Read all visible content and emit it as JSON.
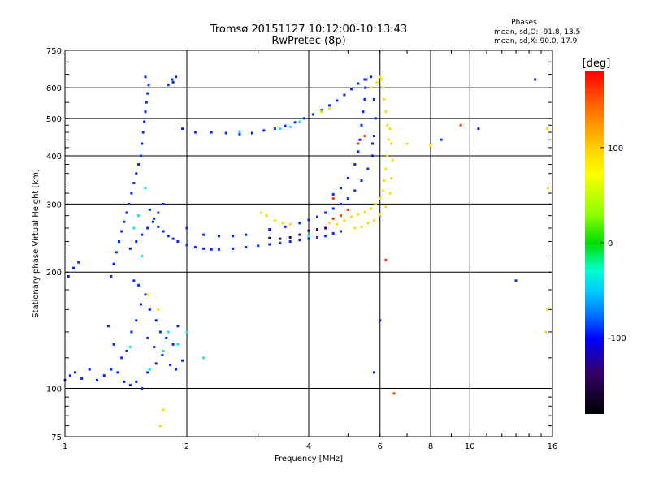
{
  "header": {
    "title": "Tromsø 20151127 10:12:00-10:13:43",
    "subtitle": "RwPretec (8p)"
  },
  "stats": {
    "heading": "Phases",
    "line_o": "mean, sd,O: -91.8, 13.5",
    "line_x": "mean, sd,X:  90.0, 17.9"
  },
  "chart_data": {
    "type": "scatter",
    "title": "Tromsø 20151127 10:12:00-10:13:43",
    "subtitle": "RwPretec (8p)",
    "xlabel": "Frequency [MHz]",
    "ylabel": "Stationary phase Virtual Height [km]",
    "x_scale": "log",
    "y_scale": "log",
    "xlim": [
      1,
      16
    ],
    "ylim": [
      75,
      750
    ],
    "x_ticks": [
      1,
      2,
      4,
      6,
      8,
      10,
      16
    ],
    "x_tick_labels": [
      "1",
      "2",
      "4",
      "6",
      "8",
      "10",
      "16"
    ],
    "y_ticks": [
      75,
      100,
      200,
      300,
      400,
      500,
      600,
      750
    ],
    "y_tick_labels": [
      "75",
      "100",
      "200",
      "300",
      "400",
      "500",
      "600",
      "750"
    ],
    "grid": true,
    "color_by": "phase",
    "colorbar": {
      "unit": "[deg]",
      "range": [
        -180,
        180
      ],
      "ticks": [
        100,
        0,
        -100
      ],
      "tick_labels": [
        "100",
        "0",
        "-100"
      ]
    },
    "series": [
      {
        "phase_deg": -92,
        "points": [
          [
            1.0,
            105
          ],
          [
            1.03,
            108
          ],
          [
            1.06,
            110
          ],
          [
            1.1,
            106
          ],
          [
            1.15,
            112
          ],
          [
            1.2,
            105
          ],
          [
            1.25,
            108
          ],
          [
            1.3,
            112
          ],
          [
            1.35,
            110
          ],
          [
            1.4,
            104
          ],
          [
            1.45,
            102
          ],
          [
            1.5,
            104
          ],
          [
            1.55,
            100
          ],
          [
            1.6,
            110
          ],
          [
            1.68,
            116
          ],
          [
            1.02,
            195
          ],
          [
            1.05,
            205
          ],
          [
            1.08,
            212
          ],
          [
            1.28,
            145
          ],
          [
            1.32,
            130
          ],
          [
            1.38,
            120
          ],
          [
            1.42,
            125
          ],
          [
            1.46,
            140
          ],
          [
            1.5,
            150
          ],
          [
            1.54,
            165
          ],
          [
            1.58,
            175
          ],
          [
            1.62,
            160
          ],
          [
            1.68,
            150
          ],
          [
            1.72,
            140
          ],
          [
            1.78,
            135
          ],
          [
            1.85,
            130
          ],
          [
            1.9,
            145
          ],
          [
            1.95,
            118
          ],
          [
            1.48,
            190
          ],
          [
            1.52,
            185
          ],
          [
            1.6,
            135
          ],
          [
            1.66,
            128
          ],
          [
            1.74,
            122
          ],
          [
            1.82,
            115
          ],
          [
            1.88,
            112
          ],
          [
            1.3,
            195
          ],
          [
            1.32,
            210
          ],
          [
            1.34,
            225
          ],
          [
            1.36,
            240
          ],
          [
            1.38,
            255
          ],
          [
            1.4,
            270
          ],
          [
            1.42,
            285
          ],
          [
            1.44,
            300
          ],
          [
            1.46,
            320
          ],
          [
            1.48,
            340
          ],
          [
            1.5,
            360
          ],
          [
            1.52,
            380
          ],
          [
            1.54,
            400
          ],
          [
            1.55,
            430
          ],
          [
            1.56,
            460
          ],
          [
            1.57,
            490
          ],
          [
            1.58,
            520
          ],
          [
            1.59,
            550
          ],
          [
            1.6,
            580
          ],
          [
            1.61,
            610
          ],
          [
            1.58,
            640
          ],
          [
            1.45,
            230
          ],
          [
            1.5,
            240
          ],
          [
            1.55,
            250
          ],
          [
            1.6,
            260
          ],
          [
            1.65,
            270
          ],
          [
            1.7,
            285
          ],
          [
            1.75,
            300
          ],
          [
            1.8,
            610
          ],
          [
            1.85,
            620
          ],
          [
            1.88,
            640
          ],
          [
            1.84,
            630
          ],
          [
            1.62,
            290
          ],
          [
            1.66,
            275
          ],
          [
            1.7,
            262
          ],
          [
            1.75,
            255
          ],
          [
            1.8,
            248
          ],
          [
            1.85,
            244
          ],
          [
            1.9,
            240
          ],
          [
            2.0,
            235
          ],
          [
            2.1,
            232
          ],
          [
            2.2,
            230
          ],
          [
            2.3,
            229
          ],
          [
            2.4,
            229
          ],
          [
            2.6,
            230
          ],
          [
            2.8,
            232
          ],
          [
            3.0,
            234
          ],
          [
            3.2,
            236
          ],
          [
            3.4,
            238
          ],
          [
            3.6,
            240
          ],
          [
            3.8,
            242
          ],
          [
            4.0,
            244
          ],
          [
            4.2,
            246
          ],
          [
            4.4,
            248
          ],
          [
            4.6,
            252
          ],
          [
            4.8,
            255
          ],
          [
            2.0,
            260
          ],
          [
            2.2,
            250
          ],
          [
            2.4,
            248
          ],
          [
            2.6,
            248
          ],
          [
            2.8,
            250
          ],
          [
            3.2,
            258
          ],
          [
            3.5,
            262
          ],
          [
            3.8,
            268
          ],
          [
            4.0,
            273
          ],
          [
            4.2,
            278
          ],
          [
            4.4,
            285
          ],
          [
            4.6,
            292
          ],
          [
            4.8,
            300
          ],
          [
            5.0,
            310
          ],
          [
            5.2,
            325
          ],
          [
            5.4,
            345
          ],
          [
            5.6,
            370
          ],
          [
            5.75,
            400
          ],
          [
            4.6,
            318
          ],
          [
            4.8,
            330
          ],
          [
            5.0,
            350
          ],
          [
            5.2,
            380
          ],
          [
            5.3,
            410
          ],
          [
            5.35,
            440
          ],
          [
            5.4,
            480
          ],
          [
            5.45,
            520
          ],
          [
            5.5,
            560
          ],
          [
            5.52,
            600
          ],
          [
            5.55,
            630
          ],
          [
            1.95,
            470
          ],
          [
            2.1,
            460
          ],
          [
            2.3,
            460
          ],
          [
            2.5,
            458
          ],
          [
            2.7,
            455
          ],
          [
            2.9,
            458
          ],
          [
            3.1,
            465
          ],
          [
            3.3,
            470
          ],
          [
            3.5,
            478
          ],
          [
            3.7,
            488
          ],
          [
            3.9,
            500
          ],
          [
            4.1,
            512
          ],
          [
            4.3,
            525
          ],
          [
            4.5,
            540
          ],
          [
            4.7,
            556
          ],
          [
            4.9,
            575
          ],
          [
            5.1,
            595
          ],
          [
            5.3,
            615
          ],
          [
            5.5,
            630
          ],
          [
            5.7,
            640
          ],
          [
            5.8,
            560
          ],
          [
            5.85,
            500
          ],
          [
            5.8,
            450
          ],
          [
            5.75,
            430
          ],
          [
            14.5,
            630
          ],
          [
            13.0,
            190
          ],
          [
            10.5,
            470
          ],
          [
            8.5,
            440
          ],
          [
            5.8,
            110
          ],
          [
            6.0,
            150
          ]
        ]
      },
      {
        "phase_deg": 90,
        "points": [
          [
            3.05,
            285
          ],
          [
            3.15,
            280
          ],
          [
            3.3,
            272
          ],
          [
            3.45,
            268
          ],
          [
            3.6,
            266
          ],
          [
            4.5,
            268
          ],
          [
            4.7,
            266
          ],
          [
            4.9,
            272
          ],
          [
            5.1,
            278
          ],
          [
            5.3,
            282
          ],
          [
            5.5,
            286
          ],
          [
            5.7,
            292
          ],
          [
            5.85,
            300
          ],
          [
            6.0,
            310
          ],
          [
            6.1,
            325
          ],
          [
            6.15,
            345
          ],
          [
            6.2,
            370
          ],
          [
            6.25,
            400
          ],
          [
            6.3,
            440
          ],
          [
            6.25,
            480
          ],
          [
            6.2,
            520
          ],
          [
            6.15,
            560
          ],
          [
            6.1,
            600
          ],
          [
            6.05,
            630
          ],
          [
            5.2,
            260
          ],
          [
            5.4,
            262
          ],
          [
            5.6,
            268
          ],
          [
            5.8,
            272
          ],
          [
            6.0,
            282
          ],
          [
            6.2,
            295
          ],
          [
            6.35,
            320
          ],
          [
            6.4,
            350
          ],
          [
            6.45,
            390
          ],
          [
            6.4,
            430
          ],
          [
            6.35,
            470
          ],
          [
            5.7,
            600
          ],
          [
            5.9,
            620
          ],
          [
            6.0,
            640
          ],
          [
            4.3,
            520
          ],
          [
            4.5,
            530
          ],
          [
            1.6,
            175
          ],
          [
            1.7,
            160
          ],
          [
            1.75,
            88
          ],
          [
            1.72,
            80
          ],
          [
            7.0,
            430
          ],
          [
            8.0,
            425
          ],
          [
            15.5,
            470
          ],
          [
            15.6,
            330
          ],
          [
            15.4,
            140
          ],
          [
            15.5,
            160
          ]
        ]
      },
      {
        "phase_deg": -35,
        "points": [
          [
            1.45,
            128
          ],
          [
            1.62,
            112
          ],
          [
            1.75,
            125
          ],
          [
            1.8,
            140
          ],
          [
            1.9,
            130
          ],
          [
            2.0,
            140
          ],
          [
            2.2,
            120
          ],
          [
            3.4,
            470
          ],
          [
            3.6,
            475
          ],
          [
            3.8,
            490
          ],
          [
            2.7,
            462
          ],
          [
            4.0,
            248
          ],
          [
            1.55,
            220
          ],
          [
            1.52,
            280
          ],
          [
            1.58,
            330
          ],
          [
            1.48,
            260
          ]
        ]
      },
      {
        "phase_deg": -140,
        "points": [
          [
            3.2,
            245
          ],
          [
            3.4,
            244
          ],
          [
            3.6,
            246
          ],
          [
            3.8,
            250
          ],
          [
            4.0,
            256
          ],
          [
            4.2,
            258
          ],
          [
            4.4,
            260
          ]
        ]
      },
      {
        "phase_deg": 160,
        "points": [
          [
            4.6,
            275
          ],
          [
            4.8,
            280
          ],
          [
            5.0,
            290
          ],
          [
            5.3,
            430
          ],
          [
            5.5,
            450
          ],
          [
            9.5,
            480
          ],
          [
            6.5,
            97
          ],
          [
            6.2,
            215
          ],
          [
            4.6,
            310
          ]
        ]
      }
    ]
  }
}
